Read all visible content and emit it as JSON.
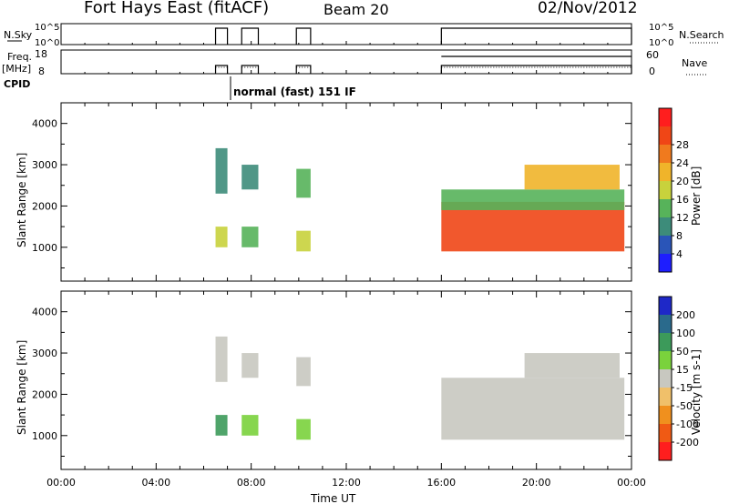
{
  "header": {
    "station": "Fort Hays East (fitACF)",
    "beam": "Beam 20",
    "date": "02/Nov/2012"
  },
  "status": {
    "nsky_label": "N.Sky",
    "nsky_ticks": [
      "10^5",
      "10^0"
    ],
    "nsearch_label": "N.Search",
    "nsearch_ticks": [
      "10^5",
      "10^0"
    ],
    "freq_label": "Freq.",
    "freq_unit": "[MHz]",
    "freq_ticks": [
      "18",
      "8"
    ],
    "nave_label": "Nave",
    "nave_ticks": [
      "60",
      "0"
    ],
    "cpid_label": "CPID",
    "cpid_value": "normal (fast) 151 IF"
  },
  "x_axis": {
    "title": "Time UT",
    "tick_labels": [
      "00:00",
      "04:00",
      "08:00",
      "12:00",
      "16:00",
      "20:00",
      "00:00"
    ]
  },
  "chart_data": [
    {
      "type": "heatmap",
      "name": "power",
      "ylabel": "Slant Range [km]",
      "y_tick_labels": [
        "1000",
        "2000",
        "3000",
        "4000"
      ],
      "ylim": [
        180,
        4500
      ],
      "xlim_hours": [
        0,
        24
      ],
      "colorbar": {
        "label": "Power [dB]",
        "tick_labels": [
          "4",
          "8",
          "12",
          "16",
          "20",
          "24",
          "28"
        ],
        "colors": [
          "#1e1eff",
          "#2a55b8",
          "#3d8c7a",
          "#57b35a",
          "#c8d23c",
          "#f0b42a",
          "#f07a1e",
          "#f04616",
          "#ff1e1e"
        ]
      },
      "echo_regions": [
        {
          "t0": 6.5,
          "t1": 7.0,
          "r0": 1000,
          "r1": 1500,
          "value_db": 14
        },
        {
          "t0": 6.5,
          "t1": 7.0,
          "r0": 2300,
          "r1": 3400,
          "value_db": 6
        },
        {
          "t0": 7.6,
          "t1": 8.3,
          "r0": 1000,
          "r1": 1500,
          "value_db": 12
        },
        {
          "t0": 7.6,
          "t1": 8.3,
          "r0": 2400,
          "r1": 3000,
          "value_db": 8
        },
        {
          "t0": 9.9,
          "t1": 10.5,
          "r0": 900,
          "r1": 1400,
          "value_db": 16
        },
        {
          "t0": 9.9,
          "t1": 10.5,
          "r0": 2200,
          "r1": 2900,
          "value_db": 10
        },
        {
          "t0": 16.0,
          "t1": 23.7,
          "r0": 900,
          "r1": 2100,
          "value_db": 26
        },
        {
          "t0": 16.0,
          "t1": 23.7,
          "r0": 1900,
          "r1": 2400,
          "value_db": 10
        },
        {
          "t0": 19.5,
          "t1": 23.5,
          "r0": 2400,
          "r1": 3000,
          "value_db": 18
        }
      ]
    },
    {
      "type": "heatmap",
      "name": "velocity",
      "ylabel": "Slant Range [km]",
      "y_tick_labels": [
        "1000",
        "2000",
        "3000",
        "4000"
      ],
      "ylim": [
        180,
        4500
      ],
      "xlim_hours": [
        0,
        24
      ],
      "colorbar": {
        "label": "Velocity [m s-1]",
        "tick_labels": [
          "200",
          "100",
          "50",
          "15",
          "-15",
          "-50",
          "-100",
          "-200"
        ],
        "colors": [
          "#1e28c8",
          "#2a6a8c",
          "#3c9a5a",
          "#7ad23c",
          "#c8c8c0",
          "#f0c06a",
          "#f0901e",
          "#f05a14",
          "#ff1e1e"
        ]
      },
      "echo_regions": [
        {
          "t0": 6.5,
          "t1": 7.0,
          "r0": 1000,
          "r1": 1500,
          "value_ms": 60
        },
        {
          "t0": 6.5,
          "t1": 7.0,
          "r0": 2300,
          "r1": 3400,
          "value_ms": 0
        },
        {
          "t0": 7.6,
          "t1": 8.3,
          "r0": 1000,
          "r1": 1500,
          "value_ms": 30
        },
        {
          "t0": 7.6,
          "t1": 8.3,
          "r0": 2400,
          "r1": 3000,
          "value_ms": 0
        },
        {
          "t0": 9.9,
          "t1": 10.5,
          "r0": 900,
          "r1": 1400,
          "value_ms": 30
        },
        {
          "t0": 9.9,
          "t1": 10.5,
          "r0": 2200,
          "r1": 2900,
          "value_ms": 0
        },
        {
          "t0": 16.0,
          "t1": 23.7,
          "r0": 900,
          "r1": 2400,
          "value_ms": 0
        },
        {
          "t0": 19.5,
          "t1": 23.5,
          "r0": 2400,
          "r1": 3000,
          "value_ms": 0
        }
      ]
    }
  ]
}
